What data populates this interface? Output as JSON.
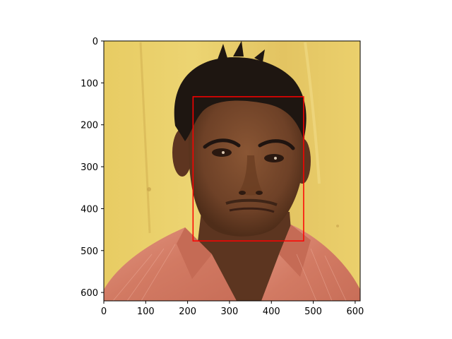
{
  "figure": {
    "image_subject": "portrait-photo"
  },
  "axes": {
    "xlim": [
      0,
      612
    ],
    "ylim": [
      620,
      0
    ],
    "x_ticks": [
      {
        "value": 0,
        "label": "0"
      },
      {
        "value": 100,
        "label": "100"
      },
      {
        "value": 200,
        "label": "200"
      },
      {
        "value": 300,
        "label": "300"
      },
      {
        "value": 400,
        "label": "400"
      },
      {
        "value": 500,
        "label": "500"
      },
      {
        "value": 600,
        "label": "600"
      }
    ],
    "y_ticks": [
      {
        "value": 0,
        "label": "0"
      },
      {
        "value": 100,
        "label": "100"
      },
      {
        "value": 200,
        "label": "200"
      },
      {
        "value": 300,
        "label": "300"
      },
      {
        "value": 400,
        "label": "400"
      },
      {
        "value": 500,
        "label": "500"
      },
      {
        "value": 600,
        "label": "600"
      }
    ]
  },
  "annotation": {
    "type": "bounding-box",
    "color": "#ff0000",
    "x_min": 213,
    "x_max": 477,
    "y_min": 133,
    "y_max": 477
  },
  "colors": {
    "wall_light": "#e9cf6a",
    "wall_mid": "#d9b95a",
    "skin": "#7a4a2c",
    "skin_dark": "#4f2d19",
    "hair": "#1f1712",
    "shirt": "#d8816a",
    "shirt_dark": "#b8624f"
  }
}
